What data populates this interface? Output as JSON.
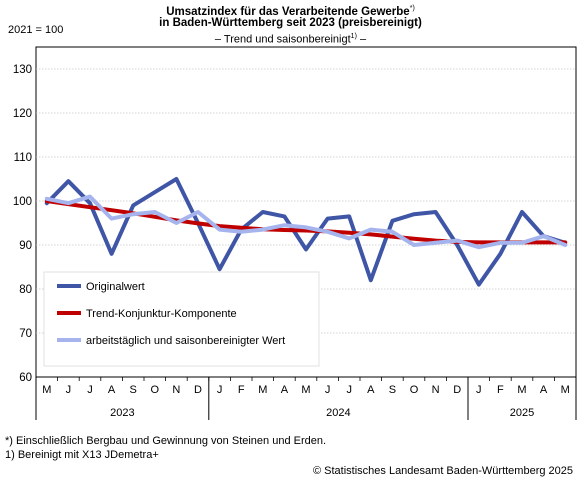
{
  "header": {
    "title_line1": "Umsatzindex für das Verarbeitende Gewerbe",
    "title_line1_mark": "*)",
    "title_line2": "in Baden-Württemberg seit 2023 (preisbereinigt)",
    "subtitle_pre": "– Trend und saisonbereinigt",
    "subtitle_mark": "1)",
    "subtitle_post": " –",
    "base_label": "2021 = 100"
  },
  "footnotes": {
    "note1": "*) Einschließlich Bergbau und Gewinnung von Steinen und Erden.",
    "note2": "1) Bereinigt mit X13 JDemetra+",
    "source": "© Statistisches Landesamt Baden-Württemberg 2025"
  },
  "chart_data": {
    "type": "line",
    "x": [
      "M",
      "J",
      "J",
      "A",
      "S",
      "O",
      "N",
      "D",
      "J",
      "F",
      "M",
      "A",
      "M",
      "J",
      "J",
      "A",
      "S",
      "O",
      "N",
      "D",
      "J",
      "F",
      "M",
      "A",
      "M"
    ],
    "years": [
      {
        "label": "2023",
        "start": 0,
        "end": 7
      },
      {
        "label": "2024",
        "start": 8,
        "end": 19
      },
      {
        "label": "2025",
        "start": 20,
        "end": 24
      }
    ],
    "ylim": [
      60,
      135
    ],
    "yticks": [
      60,
      70,
      80,
      90,
      100,
      110,
      120,
      130
    ],
    "grid": true,
    "legend_position": "bottom-left",
    "series": [
      {
        "name": "Originalwert",
        "color": "#3f55a6",
        "values": [
          99.5,
          104.5,
          99.5,
          88,
          99,
          102,
          105,
          95,
          84.5,
          93.5,
          97.5,
          96.5,
          89,
          96,
          96.5,
          82,
          95.5,
          97,
          97.5,
          90,
          81,
          88,
          97.5,
          92,
          90.5
        ]
      },
      {
        "name": "Trend-Konjunktur-Komponente",
        "color": "#c00000",
        "values": [
          100,
          99.3,
          98.6,
          97.9,
          97.2,
          96.4,
          95.6,
          94.9,
          94.3,
          93.9,
          93.6,
          93.4,
          93.3,
          93.1,
          92.8,
          92.4,
          91.9,
          91.4,
          91.0,
          90.7,
          90.6,
          90.6,
          90.6,
          90.6,
          90.6
        ]
      },
      {
        "name": "arbeitstäglich und saisonbereinigter Wert",
        "color": "#a6b4ee",
        "values": [
          100.5,
          99.5,
          101,
          96,
          97,
          97.5,
          95,
          97.5,
          93.5,
          93,
          93.5,
          94.5,
          94,
          93,
          91.5,
          93.5,
          93,
          90,
          90.5,
          91,
          89.5,
          90.5,
          90.5,
          92,
          90
        ]
      }
    ]
  }
}
